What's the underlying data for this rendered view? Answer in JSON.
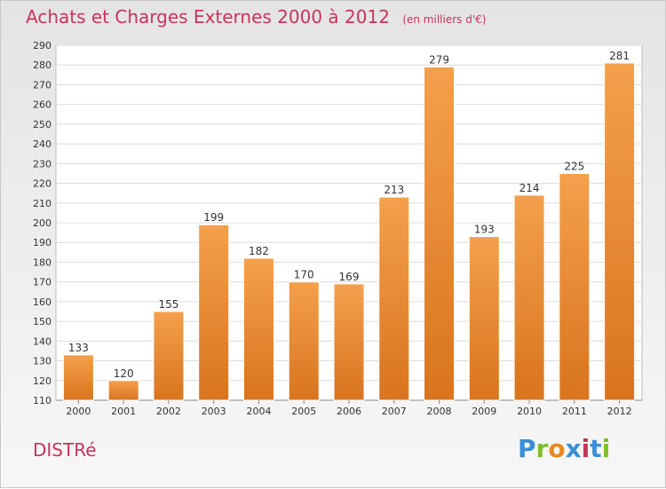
{
  "header": {
    "title": "Achats et Charges Externes 2000 à 2012",
    "unit": "(en milliers d'€)"
  },
  "footer": {
    "commune": "DISTRé",
    "logo_text": "Proxiti"
  },
  "colors": {
    "title": "#c8345a",
    "bar_top": "#f4a04c",
    "bar_bottom": "#d9741e",
    "logo_letters": [
      "#3a8fd6",
      "#7cbf2a",
      "#e68a1f",
      "#3a8fd6",
      "#c8345a",
      "#3a8fd6",
      "#7cbf2a"
    ]
  },
  "chart_data": {
    "type": "bar",
    "title": "Achats et Charges Externes 2000 à 2012",
    "subtitle": "(en milliers d'€)",
    "xlabel": "",
    "ylabel": "",
    "categories": [
      "2000",
      "2001",
      "2002",
      "2003",
      "2004",
      "2005",
      "2006",
      "2007",
      "2008",
      "2009",
      "2010",
      "2011",
      "2012"
    ],
    "values": [
      133,
      120,
      155,
      199,
      182,
      170,
      169,
      213,
      279,
      193,
      214,
      225,
      281
    ],
    "ylim": [
      110,
      290
    ],
    "yticks": [
      110,
      120,
      130,
      140,
      150,
      160,
      170,
      180,
      190,
      200,
      210,
      220,
      230,
      240,
      250,
      260,
      270,
      280,
      290
    ],
    "grid": true,
    "legend": "none"
  }
}
